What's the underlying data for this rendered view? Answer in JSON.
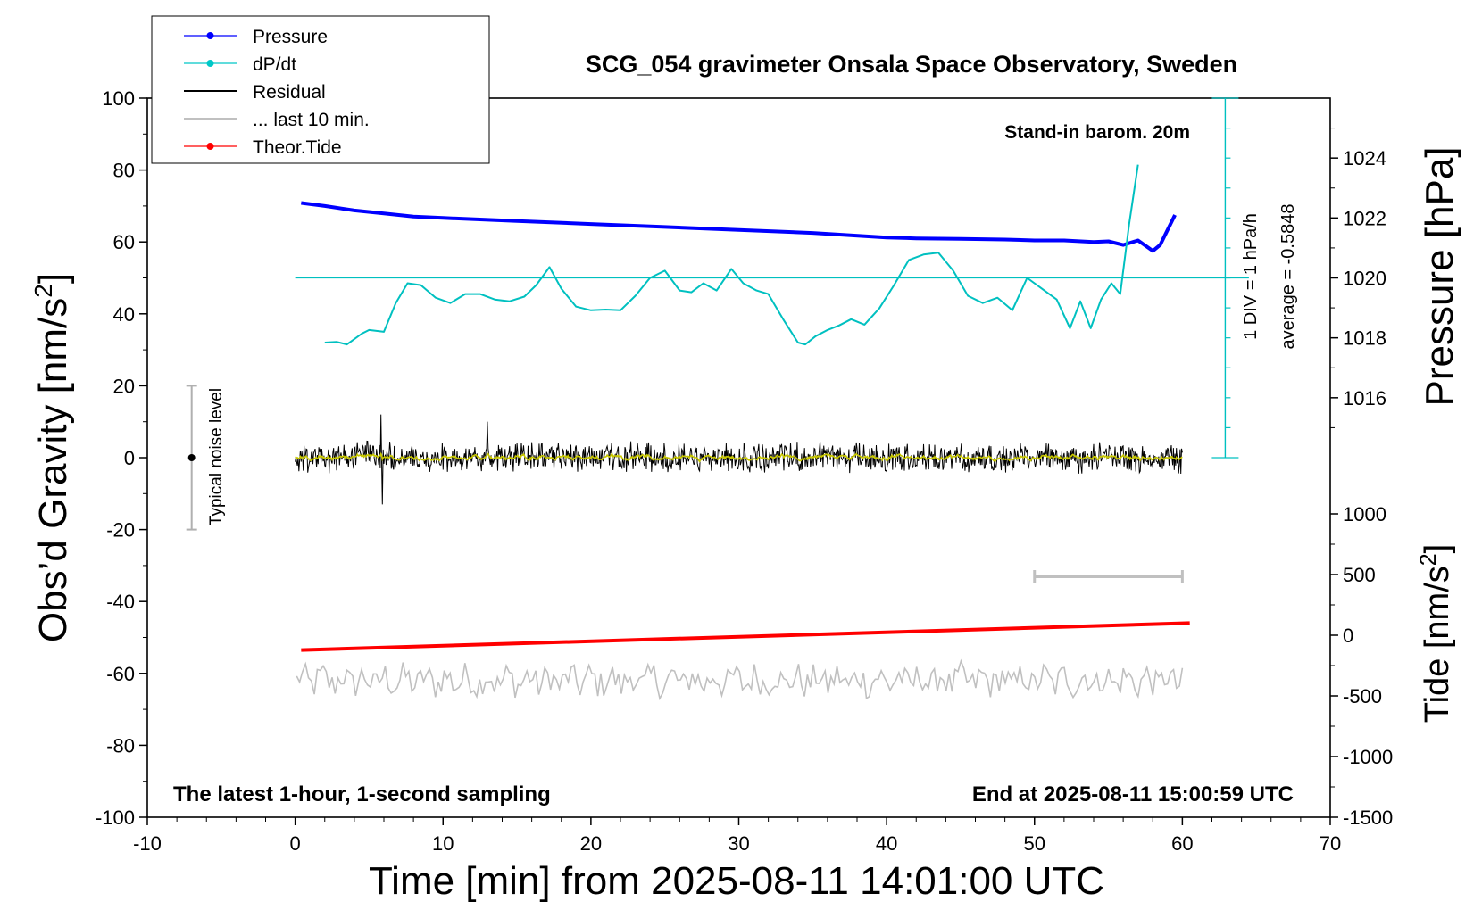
{
  "chart_data": {
    "type": "line",
    "title": "SCG_054 gravimeter Onsala Space Observatory, Sweden",
    "xlabel": "Time [min] from 2025-08-11 14:01:00 UTC",
    "ylabel_left": "Obs’d Gravity [nm/s²]",
    "ylabel_left_parts": [
      "Obs’d Gravity [nm/s",
      "2",
      "]"
    ],
    "ylabel_right_pressure": "Pressure [hPa]",
    "ylabel_right_tide": "Tide [nm/s²]",
    "ylabel_right_tide_parts": [
      "Tide [nm/s",
      "2",
      "]"
    ],
    "xlim": [
      -10,
      70
    ],
    "ylim_left": [
      -100,
      100
    ],
    "x_ticks": [
      -10,
      0,
      10,
      20,
      30,
      40,
      50,
      60,
      70
    ],
    "y_ticks_left": [
      100,
      80,
      60,
      40,
      20,
      0,
      -20,
      -40,
      -60,
      -80,
      -100
    ],
    "pressure_ticks": [
      1024,
      1022,
      1020,
      1018,
      1016
    ],
    "pressure_range": [
      1014,
      1026
    ],
    "tide_ticks": [
      1000,
      500,
      0,
      -500,
      -1000,
      -1500
    ],
    "tide_range": [
      -1500,
      1000
    ],
    "grid": false,
    "legend_position": "top-left",
    "legend": [
      {
        "label": "Pressure",
        "color": "#0000ff",
        "style": "line-dot"
      },
      {
        "label": "dP/dt",
        "color": "#00c8c8",
        "style": "line-dot"
      },
      {
        "label": "Residual",
        "color": "#000000",
        "style": "line"
      },
      {
        "label": "... last 10 min.",
        "color": "#c0c0c0",
        "style": "line"
      },
      {
        "label": "Theor.Tide",
        "color": "#ff0000",
        "style": "line-dot"
      }
    ],
    "annotations": {
      "barometer": "Stand-in barom. 20m",
      "latest": "The latest 1-hour, 1-second sampling",
      "end_time": "End at 2025-08-11 15:00:59 UTC",
      "noise": "Typical noise level",
      "dpdt_scale": "1 DIV = 1 hPa/h",
      "dpdt_average": "average = -0.5848"
    },
    "noise_bar": {
      "x": -7,
      "center": 0,
      "half_range": 20
    },
    "last10_marker": {
      "x_start": 50,
      "x_end": 60,
      "y": -33
    },
    "series": [
      {
        "name": "Pressure",
        "color": "#0000ff",
        "axis": "pressure_hPa",
        "x": [
          0.4,
          2,
          4,
          6,
          8,
          10,
          15,
          20,
          25,
          30,
          35,
          40,
          42,
          45,
          48,
          50,
          52,
          54,
          55,
          56,
          57,
          58,
          58.5,
          59,
          59.5
        ],
        "y": [
          1022.5,
          1022.4,
          1022.25,
          1022.15,
          1022.05,
          1022.0,
          1021.9,
          1021.8,
          1021.7,
          1021.6,
          1021.5,
          1021.35,
          1021.32,
          1021.3,
          1021.28,
          1021.25,
          1021.25,
          1021.2,
          1021.22,
          1021.1,
          1021.25,
          1020.9,
          1021.1,
          1021.6,
          1022.1
        ]
      },
      {
        "name": "dP/dt",
        "color": "#00c0c0",
        "axis": "left_grid",
        "x": [
          2,
          2.8,
          3.5,
          4.5,
          5,
          6,
          6.8,
          7.6,
          8.5,
          9.5,
          10.5,
          11.5,
          12.5,
          13.5,
          14.5,
          15.5,
          16.3,
          17.2,
          18,
          19,
          20,
          21,
          22,
          23,
          24,
          25,
          26,
          26.8,
          27.6,
          28.5,
          29.5,
          30.3,
          31.2,
          32,
          33,
          34,
          34.5,
          35.2,
          36,
          36.8,
          37.6,
          38.5,
          39.5,
          40.5,
          41.5,
          42.5,
          43.5,
          44.5,
          45.5,
          46.5,
          47.5,
          48.5,
          49.5,
          50.5,
          51.5,
          52.4,
          53.1,
          53.8,
          54.5,
          55.2,
          55.8,
          56.4,
          57.0
        ],
        "y": [
          32,
          32.2,
          31.5,
          34.5,
          35.5,
          35,
          43,
          48.5,
          48,
          44.5,
          43,
          45.5,
          45.5,
          44,
          43.5,
          44.8,
          48,
          53,
          47,
          42,
          41,
          41.2,
          41,
          45,
          50,
          52,
          46.5,
          46,
          48.5,
          46.5,
          52.5,
          48.5,
          46.5,
          45.5,
          38.5,
          32,
          31.5,
          33.8,
          35.5,
          36.8,
          38.5,
          37,
          41.5,
          48,
          55,
          56.5,
          57,
          52,
          45,
          43,
          44.5,
          41,
          50,
          47,
          44,
          36,
          43.5,
          36,
          44,
          48.5,
          45.5,
          65,
          81.5
        ]
      },
      {
        "name": "Theor.Tide",
        "color": "#ff0000",
        "axis": "left_grid",
        "x": [
          0.4,
          60.5
        ],
        "y": [
          -53.5,
          -46
        ]
      }
    ],
    "residual_stats": {
      "x_start": 0,
      "x_end": 60,
      "typical_amplitude": 4,
      "max_spike": 12,
      "min_spike": -13
    },
    "last10_stats": {
      "baseline": -62,
      "amplitude": 4
    }
  }
}
